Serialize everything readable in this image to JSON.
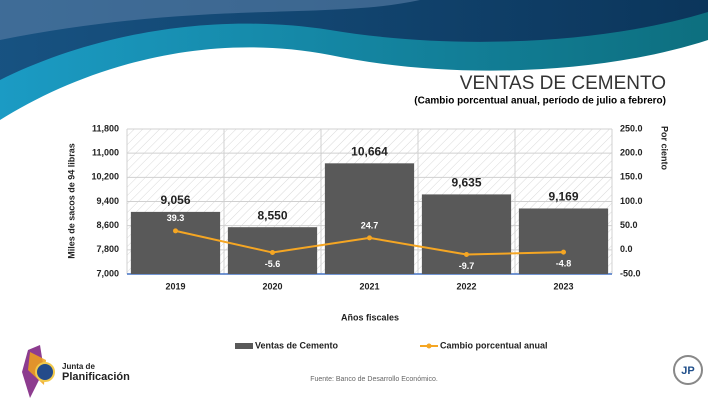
{
  "chart_data": {
    "type": "bar",
    "title": "VENTAS DE CEMENTO",
    "subtitle": "(Cambio porcentual anual, período de julio a febrero)",
    "x_label": "Años fiscales",
    "y_label": "Miles de sacos de 94 libras",
    "y2_label": "Por ciento",
    "categories": [
      "2019",
      "2020",
      "2021",
      "2022",
      "2023"
    ],
    "series": [
      {
        "name": "Ventas de Cemento",
        "type": "bar",
        "color": "#595959",
        "values": [
          9056,
          8550,
          10664,
          9635,
          9169
        ],
        "value_labels": [
          "9,056",
          "8,550",
          "10,664",
          "9,635",
          "9,169"
        ]
      },
      {
        "name": "Cambio porcentual anual",
        "type": "line",
        "axis": "y2",
        "color": "#f5a623",
        "values": [
          39.3,
          -5.6,
          24.7,
          -9.7,
          -4.8
        ]
      }
    ],
    "ylim": [
      7000,
      11800
    ],
    "yticks": [
      {
        "value": 7000,
        "label": "7,000"
      },
      {
        "value": 7800,
        "label": "7,800"
      },
      {
        "value": 8600,
        "label": "8,600"
      },
      {
        "value": 9400,
        "label": "9,400"
      },
      {
        "value": 10200,
        "label": "10,200"
      },
      {
        "value": 11000,
        "label": "11,000"
      },
      {
        "value": 11800,
        "label": "11,800"
      }
    ],
    "y2lim": [
      -50,
      250
    ],
    "y2ticks": [
      {
        "value": -50,
        "label": "-50.0"
      },
      {
        "value": 0,
        "label": "0.0"
      },
      {
        "value": 50,
        "label": "50.0"
      },
      {
        "value": 100,
        "label": "100.0"
      },
      {
        "value": 150,
        "label": "150.0"
      },
      {
        "value": 200,
        "label": "200.0"
      },
      {
        "value": 250,
        "label": "250.0"
      }
    ],
    "grid": true,
    "legend": "bottom"
  },
  "source": "Fuente: Banco de Desarrollo Económico.",
  "logo": {
    "line1": "Junta de",
    "line2": "Planificación",
    "badge": "JP"
  }
}
